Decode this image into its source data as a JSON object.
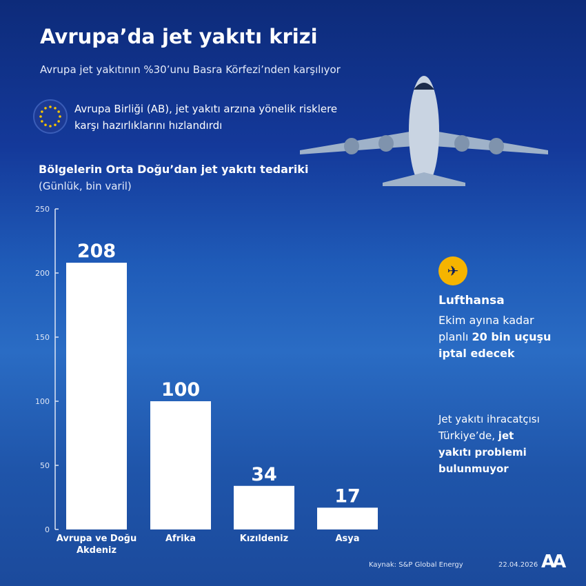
{
  "header": {
    "title": "Avrupa’da jet yakıtı krizi",
    "subtitle": "Avrupa jet yakıtının %30’unu Basra Körfezi’nden karşılıyor",
    "eu_note": "Avrupa Birliği (AB), jet yakıtı arzına yönelik risklere karşı hazırlıklarını hızlandırdı"
  },
  "chart_data": {
    "type": "bar",
    "title": "Bölgelerin Orta Doğu’dan jet yakıtı tedariki",
    "subtitle": "(Günlük, bin varil)",
    "categories": [
      "Avrupa ve Doğu Akdeniz",
      "Afrika",
      "Kızıldeniz",
      "Asya"
    ],
    "category_lines": [
      [
        "Avrupa ve Doğu",
        "Akdeniz"
      ],
      [
        "Afrika"
      ],
      [
        "Kızıldeniz"
      ],
      [
        "Asya"
      ]
    ],
    "values": [
      208,
      100,
      34,
      17
    ],
    "ylim": [
      0,
      250
    ],
    "yticks": [
      0,
      50,
      100,
      150,
      200,
      250
    ],
    "bar_color": "#ffffff",
    "grid": false
  },
  "side": {
    "lufthansa_name": "Lufthansa",
    "lufthansa_pre": "Ekim ayına kadar planlı ",
    "lufthansa_bold": "20 bin uçuşu iptal edecek",
    "turkey_pre": "Jet yakıtı ihracatçısı Türkiye’de, ",
    "turkey_bold": "jet yakıtı problemi bulunmuyor"
  },
  "footer": {
    "source": "Kaynak: S&P Global Energy",
    "date": "22.04.2026",
    "logo": "AA"
  },
  "colors": {
    "accent": "#f5b400",
    "background": "#1f55aa"
  }
}
